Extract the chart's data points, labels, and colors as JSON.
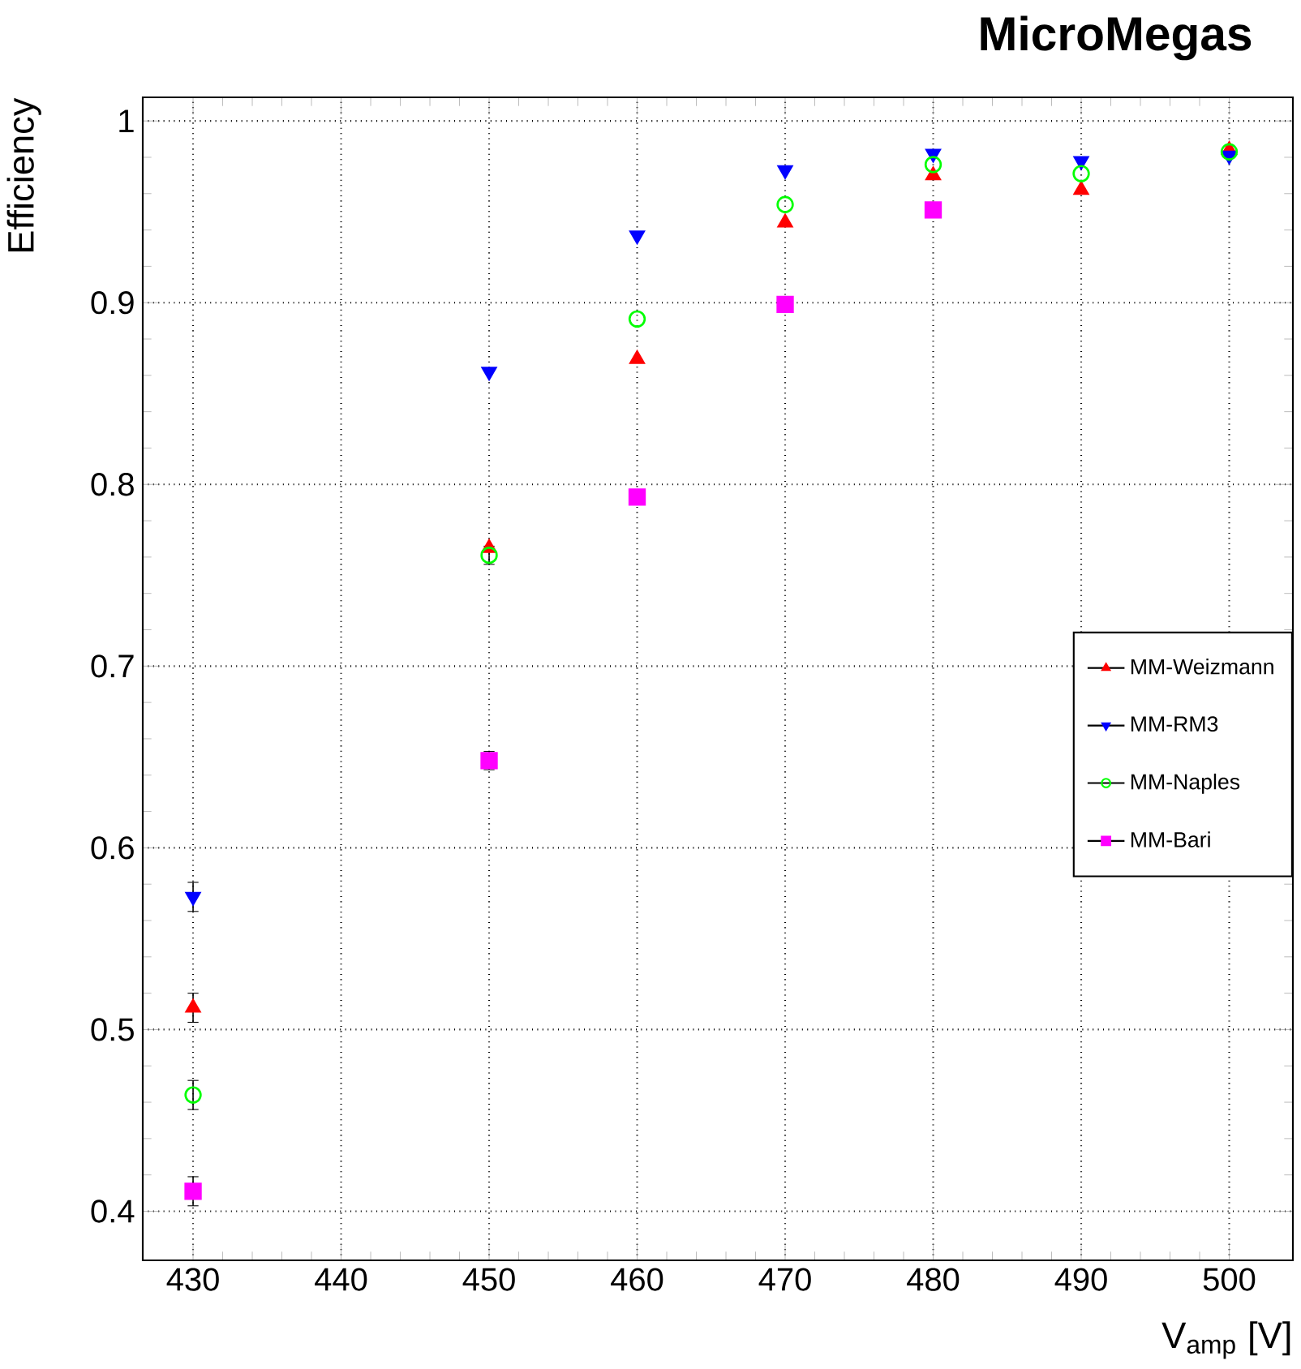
{
  "chart_data": {
    "type": "scatter",
    "title": "MicroMegas",
    "xlabel": "V$_{amp}$ [V]",
    "ylabel": "Efficiency",
    "x": [
      430,
      450,
      460,
      470,
      480,
      490,
      500
    ],
    "xlim": [
      426.6,
      504.3
    ],
    "xticks": [
      430,
      440,
      450,
      460,
      470,
      480,
      490,
      500
    ],
    "ylim": [
      0.373,
      1.013
    ],
    "yticks": [
      0.4,
      0.5,
      0.6,
      0.7,
      0.8,
      0.9,
      1
    ],
    "grid": true,
    "legend": "right",
    "series": [
      {
        "name": "MM-Weizmann",
        "color": "#ff0000",
        "marker": "triangle",
        "values": [
          0.512,
          0.765,
          0.869,
          0.944,
          0.97,
          0.962,
          0.984
        ],
        "errors": [
          0.008,
          null,
          null,
          null,
          null,
          null,
          null
        ]
      },
      {
        "name": "MM-RM3",
        "color": "#0000ff",
        "marker": "triangle-down",
        "values": [
          0.573,
          0.862,
          0.937,
          0.973,
          0.982,
          0.978,
          0.981
        ],
        "errors": [
          0.008,
          null,
          null,
          null,
          null,
          null,
          null
        ]
      },
      {
        "name": "MM-Naples",
        "color": "#00ff00",
        "marker": "circle",
        "values": [
          0.464,
          0.761,
          0.891,
          0.954,
          0.976,
          0.971,
          0.983
        ],
        "errors": [
          0.008,
          0.005,
          null,
          null,
          null,
          null,
          null
        ]
      },
      {
        "name": "MM-Bari",
        "color": "#ff00ff",
        "marker": "square",
        "values": [
          0.411,
          0.648,
          0.793,
          0.899,
          0.951,
          null,
          null
        ],
        "errors": [
          0.008,
          0.005,
          null,
          null,
          null,
          null,
          null
        ]
      }
    ]
  }
}
